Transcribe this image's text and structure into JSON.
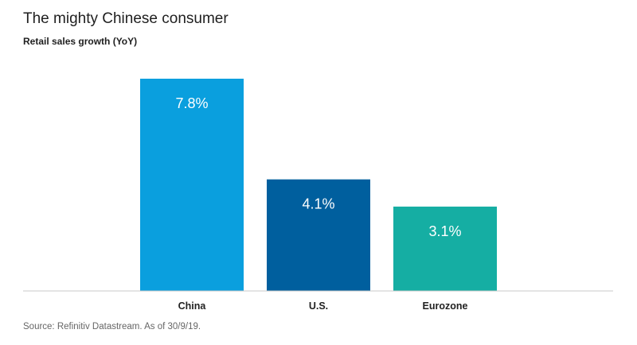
{
  "chart_data": {
    "type": "bar",
    "title": "The mighty Chinese consumer",
    "subtitle": "Retail sales growth (YoY)",
    "categories": [
      "China",
      "U.S.",
      "Eurozone"
    ],
    "values": [
      7.8,
      4.1,
      3.1
    ],
    "data_labels": [
      "7.8%",
      "4.1%",
      "3.1%"
    ],
    "colors": [
      "#0a9fde",
      "#005f9e",
      "#15aea3"
    ],
    "xlabel": "",
    "ylabel": "",
    "ylim": [
      0,
      7.8
    ],
    "grid": false,
    "legend": "none",
    "source": "Source: Refinitiv Datastream. As of 30/9/19."
  },
  "axis_color": "#c8c8c8"
}
